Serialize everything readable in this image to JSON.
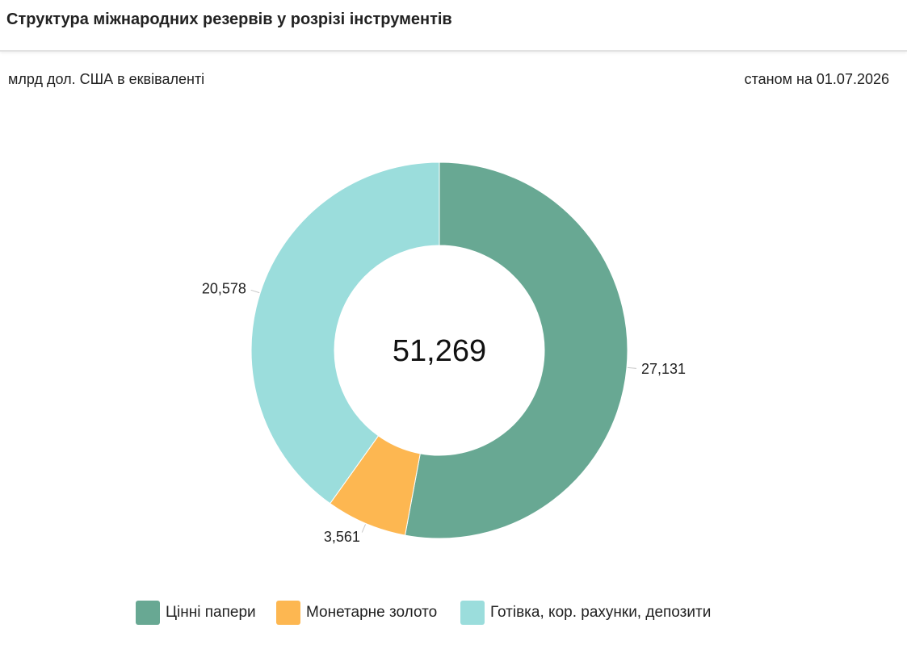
{
  "header": {
    "title": "Структура міжнародних резервів у розрізі інструментів"
  },
  "subheader": {
    "unit": "млрд дол. США в еквіваленті",
    "date": "станом на 01.07.2026"
  },
  "chart_data": {
    "type": "pie",
    "subtype": "donut",
    "total_label": "51,269",
    "total": 51.269,
    "slices": [
      {
        "name": "Цінні папери",
        "value": 27.131,
        "label": "27,131",
        "color": "#68a893"
      },
      {
        "name": "Монетарне золото",
        "value": 3.561,
        "label": "3,561",
        "color": "#fdb751"
      },
      {
        "name": "Готівка, кор. рахунки, депозити",
        "value": 20.578,
        "label": "20,578",
        "color": "#9bdddc"
      }
    ],
    "legend_position": "bottom"
  }
}
